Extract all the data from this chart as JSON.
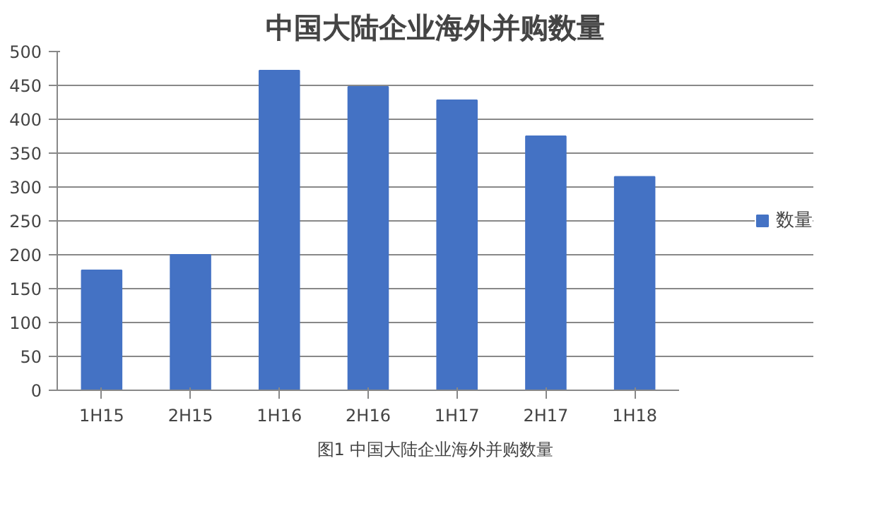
{
  "chart_data": {
    "type": "bar",
    "title": "中国大陆企业海外并购数量",
    "categories": [
      "1H15",
      "2H15",
      "1H16",
      "2H16",
      "1H17",
      "2H17",
      "1H18"
    ],
    "series": [
      {
        "name": "数量",
        "color": "#4472c4",
        "values": [
          177,
          200,
          472,
          448,
          428,
          375,
          315
        ]
      }
    ],
    "ylim": [
      0,
      500
    ],
    "yticks": [
      0,
      50,
      100,
      150,
      200,
      250,
      300,
      350,
      400,
      450,
      500
    ],
    "grid": "y",
    "legend": "right",
    "annotations": [
      "图1 中国大陆企业海外并购数量"
    ]
  }
}
